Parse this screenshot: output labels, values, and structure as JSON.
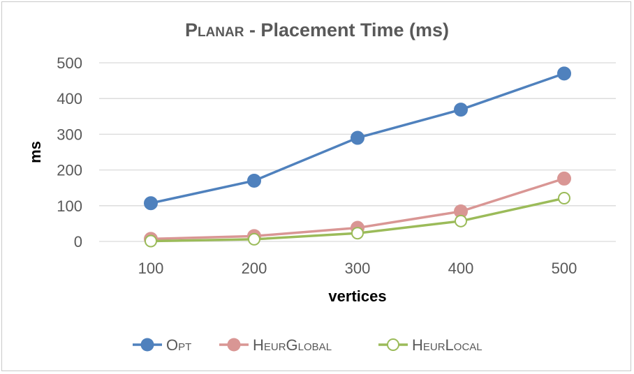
{
  "chart_data": {
    "type": "line",
    "title": "Planar - Placement Time (ms)",
    "title_parts": {
      "smallcaps": "Planar",
      "rest": " - Placement Time (ms)"
    },
    "xlabel": "vertices",
    "ylabel": "ms",
    "categories": [
      "100",
      "200",
      "300",
      "400",
      "500"
    ],
    "x": [
      100,
      200,
      300,
      400,
      500
    ],
    "ylim": [
      0,
      500
    ],
    "yticks": [
      0,
      100,
      200,
      300,
      400,
      500
    ],
    "grid": true,
    "legend_position": "bottom",
    "series": [
      {
        "name": "Opt",
        "values": [
          107,
          170,
          290,
          369,
          470
        ],
        "color": "#4f81bd",
        "marker": "filled-circle"
      },
      {
        "name": "HeurGlobal",
        "values": [
          7,
          15,
          38,
          84,
          176
        ],
        "color": "#d99694",
        "marker": "filled-circle"
      },
      {
        "name": "HeurLocal",
        "values": [
          1,
          6,
          23,
          57,
          121
        ],
        "color": "#9bbb59",
        "marker": "hollow-circle"
      }
    ]
  }
}
